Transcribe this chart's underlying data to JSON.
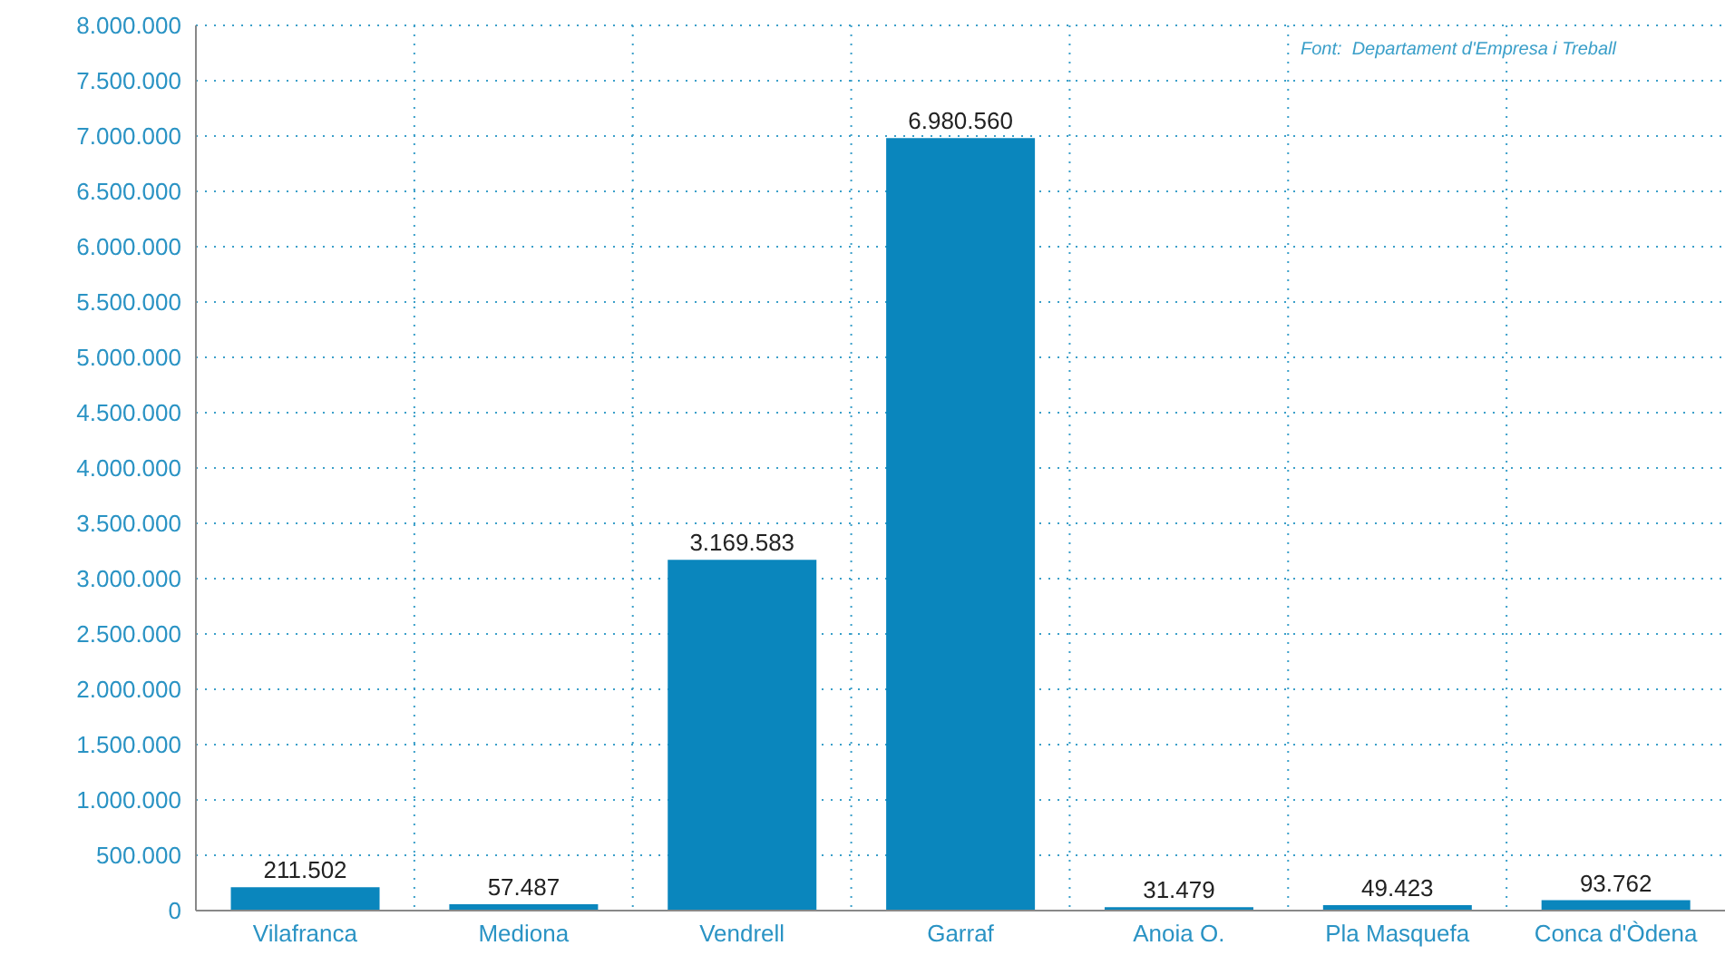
{
  "chart_data": {
    "type": "bar",
    "categories": [
      "Vilafranca",
      "Mediona",
      "Vendrell",
      "Garraf",
      "Anoia O.",
      "Pla Masquefa",
      "Conca d'Òdena"
    ],
    "values": [
      211502,
      57487,
      3169583,
      6980560,
      31479,
      49423,
      93762
    ],
    "value_labels": [
      "211.502",
      "57.487",
      "3.169.583",
      "6.980.560",
      "31.479",
      "49.423",
      "93.762"
    ],
    "color": "#0a86bd",
    "ylim": [
      0,
      8000000
    ],
    "yticks": [
      0,
      {
        "value": 500000,
        "label": "500.000"
      },
      {
        "value": 1000000,
        "label": "1.000.000"
      },
      {
        "value": 1500000,
        "label": "1.500.000"
      },
      {
        "value": 2000000,
        "label": "2.000.000"
      },
      {
        "value": 2500000,
        "label": "2.500.000"
      },
      {
        "value": 3000000,
        "label": "3.000.000"
      },
      {
        "value": 3500000,
        "label": "3.500.000"
      },
      {
        "value": 4000000,
        "label": "4.000.000"
      },
      {
        "value": 4500000,
        "label": "4.500.000"
      },
      {
        "value": 5000000,
        "label": "5.000.000"
      },
      {
        "value": 5500000,
        "label": "5.500.000"
      },
      {
        "value": 6000000,
        "label": "6.000.000"
      },
      {
        "value": 6500000,
        "label": "6.500.000"
      },
      {
        "value": 7000000,
        "label": "7.000.000"
      },
      {
        "value": 7500000,
        "label": "7.500.000"
      },
      {
        "value": 8000000,
        "label": "8.000.000"
      }
    ],
    "grid": true,
    "annotations": [
      "Font:  Departament d'Empresa i Treball"
    ]
  }
}
